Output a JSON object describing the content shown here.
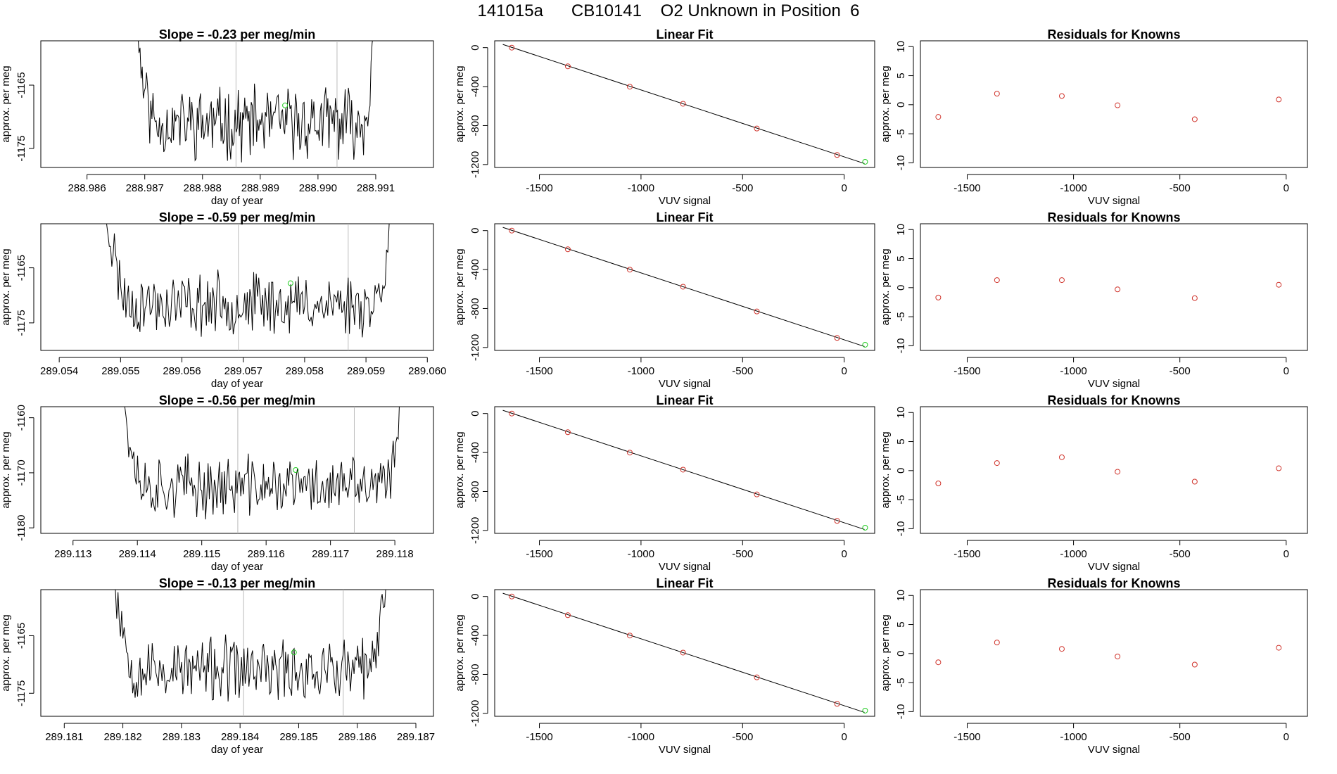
{
  "title": "141015a      CB10141    O2 Unknown in Position  6",
  "colors": {
    "line": "#000000",
    "known_point": "#d0342c",
    "unknown_point": "#22cc22",
    "vline": "#bbbbbb"
  },
  "rows": [
    {
      "timeseries": {
        "title": "Slope =  -0.23  per meg/min",
        "xlabel": "day of year",
        "ylabel": "approx. per meg",
        "xlim": [
          288.9852,
          288.992
        ],
        "ylim": [
          -1178,
          -1158
        ],
        "xticks": [
          288.986,
          288.987,
          288.988,
          288.989,
          288.99,
          288.991
        ],
        "xtick_labels": [
          "288.986",
          "288.987",
          "288.988",
          "288.989",
          "288.990",
          "288.991"
        ],
        "yticks": [
          -1175,
          -1165
        ],
        "ytick_labels": [
          "-1175",
          "-1165"
        ],
        "start": 288.98675,
        "end": 288.99105,
        "vlines": [
          288.98858,
          288.99033
        ],
        "unknown_point": [
          288.98943,
          -1168.2
        ],
        "seed": 11
      },
      "fit": {
        "title": "Linear Fit",
        "xlabel": "VUV signal",
        "ylabel": "approx. per meg",
        "xlim": [
          -1720,
          150
        ],
        "ylim": [
          -1230,
          70
        ],
        "xticks": [
          -1500,
          -1000,
          -500,
          0
        ],
        "xtick_labels": [
          "-1500",
          "-1000",
          "-500",
          "0"
        ],
        "yticks": [
          -1200,
          -800,
          -400,
          0
        ],
        "ytick_labels": [
          "-1200",
          "-800",
          "-400",
          "0"
        ],
        "line": [
          [
            -1680,
            33
          ],
          [
            100,
            -1190
          ]
        ],
        "knowns": [
          [
            -1636,
            0
          ],
          [
            -1360,
            -192
          ],
          [
            -1055,
            -401
          ],
          [
            -793,
            -576
          ],
          [
            -430,
            -830
          ],
          [
            -35,
            -1102
          ]
        ],
        "unknown": [
          103,
          -1172
        ]
      },
      "residuals": {
        "title": "Residuals for Knowns",
        "xlabel": "VUV signal",
        "ylabel": "approx. per meg",
        "xlim": [
          -1720,
          100
        ],
        "ylim": [
          -10.8,
          11
        ],
        "xticks": [
          -1500,
          -1000,
          -500,
          0
        ],
        "xtick_labels": [
          "-1500",
          "-1000",
          "-500",
          "0"
        ],
        "yticks": [
          -10,
          -5,
          0,
          5,
          10
        ],
        "ytick_labels": [
          "-10",
          "-5",
          "0",
          "5",
          "10"
        ],
        "points": [
          [
            -1636,
            -2.1
          ],
          [
            -1360,
            1.9
          ],
          [
            -1055,
            1.5
          ],
          [
            -793,
            -0.1
          ],
          [
            -430,
            -2.5
          ],
          [
            -35,
            0.9
          ]
        ]
      }
    },
    {
      "timeseries": {
        "title": "Slope =  -0.59  per meg/min",
        "xlabel": "day of year",
        "ylabel": "approx. per meg",
        "xlim": [
          289.0537,
          289.0601
        ],
        "ylim": [
          -1180,
          -1157
        ],
        "xticks": [
          289.054,
          289.055,
          289.056,
          289.057,
          289.058,
          289.059,
          289.06
        ],
        "xtick_labels": [
          "289.054",
          "289.055",
          "289.056",
          "289.057",
          "289.058",
          "289.059",
          "289.060"
        ],
        "yticks": [
          -1175,
          -1165
        ],
        "ytick_labels": [
          "-1175",
          "-1165"
        ],
        "start": 289.05467,
        "end": 289.05946,
        "vlines": [
          289.05692,
          289.05871
        ],
        "unknown_point": [
          289.05777,
          -1167.8
        ],
        "seed": 23
      },
      "fit": {
        "title": "Linear Fit",
        "xlabel": "VUV signal",
        "ylabel": "approx. per meg",
        "xlim": [
          -1720,
          150
        ],
        "ylim": [
          -1230,
          70
        ],
        "xticks": [
          -1500,
          -1000,
          -500,
          0
        ],
        "xtick_labels": [
          "-1500",
          "-1000",
          "-500",
          "0"
        ],
        "yticks": [
          -1200,
          -800,
          -400,
          0
        ],
        "ytick_labels": [
          "-1200",
          "-800",
          "-400",
          "0"
        ],
        "line": [
          [
            -1680,
            33
          ],
          [
            100,
            -1190
          ]
        ],
        "knowns": [
          [
            -1636,
            0
          ],
          [
            -1360,
            -192
          ],
          [
            -1055,
            -401
          ],
          [
            -793,
            -576
          ],
          [
            -430,
            -830
          ],
          [
            -35,
            -1102
          ]
        ],
        "unknown": [
          103,
          -1172
        ]
      },
      "residuals": {
        "title": "Residuals for Knowns",
        "xlabel": "VUV signal",
        "ylabel": "approx. per meg",
        "xlim": [
          -1720,
          100
        ],
        "ylim": [
          -10.8,
          11
        ],
        "xticks": [
          -1500,
          -1000,
          -500,
          0
        ],
        "xtick_labels": [
          "-1500",
          "-1000",
          "-500",
          "0"
        ],
        "yticks": [
          -10,
          -5,
          0,
          5,
          10
        ],
        "ytick_labels": [
          "-10",
          "-5",
          "0",
          "5",
          "10"
        ],
        "points": [
          [
            -1636,
            -1.7
          ],
          [
            -1360,
            1.3
          ],
          [
            -1055,
            1.3
          ],
          [
            -793,
            -0.3
          ],
          [
            -430,
            -1.8
          ],
          [
            -35,
            0.5
          ]
        ]
      }
    },
    {
      "timeseries": {
        "title": "Slope =  -0.56  per meg/min",
        "xlabel": "day of year",
        "ylabel": "approx. per meg",
        "xlim": [
          289.1125,
          289.1186
        ],
        "ylim": [
          -1181,
          -1158
        ],
        "xticks": [
          289.113,
          289.114,
          289.115,
          289.116,
          289.117,
          289.118
        ],
        "xtick_labels": [
          "289.113",
          "289.114",
          "289.115",
          "289.116",
          "289.117",
          "289.118"
        ],
        "yticks": [
          -1180,
          -1170,
          -1160
        ],
        "ytick_labels": [
          "-1180",
          "-1170",
          "-1160"
        ],
        "start": 289.11367,
        "end": 289.11817,
        "vlines": [
          289.11556,
          289.11737
        ],
        "unknown_point": [
          289.11646,
          -1169.5
        ],
        "seed": 37
      },
      "fit": {
        "title": "Linear Fit",
        "xlabel": "VUV signal",
        "ylabel": "approx. per meg",
        "xlim": [
          -1720,
          150
        ],
        "ylim": [
          -1230,
          70
        ],
        "xticks": [
          -1500,
          -1000,
          -500,
          0
        ],
        "xtick_labels": [
          "-1500",
          "-1000",
          "-500",
          "0"
        ],
        "yticks": [
          -1200,
          -800,
          -400,
          0
        ],
        "ytick_labels": [
          "-1200",
          "-800",
          "-400",
          "0"
        ],
        "line": [
          [
            -1680,
            33
          ],
          [
            100,
            -1190
          ]
        ],
        "knowns": [
          [
            -1636,
            0
          ],
          [
            -1360,
            -192
          ],
          [
            -1055,
            -401
          ],
          [
            -793,
            -576
          ],
          [
            -430,
            -830
          ],
          [
            -35,
            -1102
          ]
        ],
        "unknown": [
          103,
          -1172
        ]
      },
      "residuals": {
        "title": "Residuals for Knowns",
        "xlabel": "VUV signal",
        "ylabel": "approx. per meg",
        "xlim": [
          -1720,
          100
        ],
        "ylim": [
          -10.8,
          11
        ],
        "xticks": [
          -1500,
          -1000,
          -500,
          0
        ],
        "xtick_labels": [
          "-1500",
          "-1000",
          "-500",
          "0"
        ],
        "yticks": [
          -10,
          -5,
          0,
          5,
          10
        ],
        "ytick_labels": [
          "-10",
          "-5",
          "0",
          "5",
          "10"
        ],
        "points": [
          [
            -1636,
            -2.2
          ],
          [
            -1360,
            1.3
          ],
          [
            -1055,
            2.3
          ],
          [
            -793,
            -0.2
          ],
          [
            -430,
            -1.9
          ],
          [
            -35,
            0.4
          ]
        ]
      }
    },
    {
      "timeseries": {
        "title": "Slope =  -0.13  per meg/min",
        "xlabel": "day of year",
        "ylabel": "approx. per meg",
        "xlim": [
          289.1806,
          289.1873
        ],
        "ylim": [
          -1179,
          -1157
        ],
        "xticks": [
          289.181,
          289.182,
          289.183,
          289.184,
          289.185,
          289.186,
          289.187
        ],
        "xtick_labels": [
          "289.181",
          "289.182",
          "289.183",
          "289.184",
          "289.185",
          "289.186",
          "289.187"
        ],
        "yticks": [
          -1175,
          -1165
        ],
        "ytick_labels": [
          "-1175",
          "-1165"
        ],
        "start": 289.18175,
        "end": 289.18655,
        "vlines": [
          289.18406,
          289.18576
        ],
        "unknown_point": [
          289.18492,
          -1167.9
        ],
        "seed": 53
      },
      "fit": {
        "title": "Linear Fit",
        "xlabel": "VUV signal",
        "ylabel": "approx. per meg",
        "xlim": [
          -1720,
          150
        ],
        "ylim": [
          -1230,
          70
        ],
        "xticks": [
          -1500,
          -1000,
          -500,
          0
        ],
        "xtick_labels": [
          "-1500",
          "-1000",
          "-500",
          "0"
        ],
        "yticks": [
          -1200,
          -800,
          -400,
          0
        ],
        "ytick_labels": [
          "-1200",
          "-800",
          "-400",
          "0"
        ],
        "line": [
          [
            -1680,
            33
          ],
          [
            100,
            -1190
          ]
        ],
        "knowns": [
          [
            -1636,
            0
          ],
          [
            -1360,
            -192
          ],
          [
            -1055,
            -401
          ],
          [
            -793,
            -576
          ],
          [
            -430,
            -830
          ],
          [
            -35,
            -1102
          ]
        ],
        "unknown": [
          103,
          -1172
        ]
      },
      "residuals": {
        "title": "Residuals for Knowns",
        "xlabel": "VUV signal",
        "ylabel": "approx. per meg",
        "xlim": [
          -1720,
          100
        ],
        "ylim": [
          -10.8,
          11
        ],
        "xticks": [
          -1500,
          -1000,
          -500,
          0
        ],
        "xtick_labels": [
          "-1500",
          "-1000",
          "-500",
          "0"
        ],
        "yticks": [
          -10,
          -5,
          0,
          5,
          10
        ],
        "ytick_labels": [
          "-10",
          "-5",
          "0",
          "5",
          "10"
        ],
        "points": [
          [
            -1636,
            -1.5
          ],
          [
            -1360,
            1.9
          ],
          [
            -1055,
            0.8
          ],
          [
            -793,
            -0.5
          ],
          [
            -430,
            -1.9
          ],
          [
            -35,
            1.0
          ]
        ]
      }
    }
  ],
  "chart_data": [
    {
      "type": "line",
      "title": "Slope =  -0.23  per meg/min",
      "xlabel": "day of year",
      "ylabel": "approx. per meg",
      "xlim": [
        288.9852,
        288.992
      ],
      "ylim": [
        -1178,
        -1158
      ],
      "series": [
        {
          "name": "approx. per meg (noisy trace, ~-1170 baseline, rises above -1158 at both ends)",
          "x_start": 288.98675,
          "x_end": 288.99105
        }
      ],
      "vertical_lines": [
        288.98858,
        288.99033
      ],
      "unknown_point": [
        288.98943,
        -1168.2
      ]
    },
    {
      "type": "scatter",
      "title": "Linear Fit",
      "xlabel": "VUV signal",
      "ylabel": "approx. per meg",
      "known_x": [
        -1636,
        -1360,
        -1055,
        -793,
        -430,
        -35
      ],
      "known_y": [
        0,
        -192,
        -401,
        -576,
        -830,
        -1102
      ],
      "unknown": [
        103,
        -1172
      ],
      "fit_line": [
        [
          -1680,
          33
        ],
        [
          100,
          -1190
        ]
      ]
    },
    {
      "type": "scatter",
      "title": "Residuals for Knowns",
      "xlabel": "VUV signal",
      "ylabel": "approx. per meg",
      "x": [
        -1636,
        -1360,
        -1055,
        -793,
        -430,
        -35
      ],
      "y": [
        -2.1,
        1.9,
        1.5,
        -0.1,
        -2.5,
        0.9
      ]
    },
    {
      "type": "line",
      "title": "Slope =  -0.59  per meg/min",
      "xlabel": "day of year",
      "ylabel": "approx. per meg",
      "xlim": [
        289.0537,
        289.0601
      ],
      "ylim": [
        -1180,
        -1157
      ],
      "vertical_lines": [
        289.05692,
        289.05871
      ],
      "unknown_point": [
        289.05777,
        -1167.8
      ]
    },
    {
      "type": "scatter",
      "title": "Linear Fit",
      "xlabel": "VUV signal",
      "ylabel": "approx. per meg",
      "known_x": [
        -1636,
        -1360,
        -1055,
        -793,
        -430,
        -35
      ],
      "known_y": [
        0,
        -192,
        -401,
        -576,
        -830,
        -1102
      ],
      "unknown": [
        103,
        -1172
      ]
    },
    {
      "type": "scatter",
      "title": "Residuals for Knowns",
      "xlabel": "VUV signal",
      "ylabel": "approx. per meg",
      "x": [
        -1636,
        -1360,
        -1055,
        -793,
        -430,
        -35
      ],
      "y": [
        -1.7,
        1.3,
        1.3,
        -0.3,
        -1.8,
        0.5
      ]
    },
    {
      "type": "line",
      "title": "Slope =  -0.56  per meg/min",
      "xlabel": "day of year",
      "ylabel": "approx. per meg",
      "xlim": [
        289.1125,
        289.1186
      ],
      "ylim": [
        -1181,
        -1158
      ],
      "vertical_lines": [
        289.11556,
        289.11737
      ],
      "unknown_point": [
        289.11646,
        -1169.5
      ]
    },
    {
      "type": "scatter",
      "title": "Linear Fit",
      "xlabel": "VUV signal",
      "ylabel": "approx. per meg",
      "known_x": [
        -1636,
        -1360,
        -1055,
        -793,
        -430,
        -35
      ],
      "known_y": [
        0,
        -192,
        -401,
        -576,
        -830,
        -1102
      ],
      "unknown": [
        103,
        -1172
      ]
    },
    {
      "type": "scatter",
      "title": "Residuals for Knowns",
      "xlabel": "VUV signal",
      "ylabel": "approx. per meg",
      "x": [
        -1636,
        -1360,
        -1055,
        -793,
        -430,
        -35
      ],
      "y": [
        -2.2,
        1.3,
        2.3,
        -0.2,
        -1.9,
        0.4
      ]
    },
    {
      "type": "line",
      "title": "Slope =  -0.13  per meg/min",
      "xlabel": "day of year",
      "ylabel": "approx. per meg",
      "xlim": [
        289.1806,
        289.1873
      ],
      "ylim": [
        -1179,
        -1157
      ],
      "vertical_lines": [
        289.18406,
        289.18576
      ],
      "unknown_point": [
        289.18492,
        -1167.9
      ]
    },
    {
      "type": "scatter",
      "title": "Linear Fit",
      "xlabel": "VUV signal",
      "ylabel": "approx. per meg",
      "known_x": [
        -1636,
        -1360,
        -1055,
        -793,
        -430,
        -35
      ],
      "known_y": [
        0,
        -192,
        -401,
        -576,
        -830,
        -1102
      ],
      "unknown": [
        103,
        -1172
      ]
    },
    {
      "type": "scatter",
      "title": "Residuals for Knowns",
      "xlabel": "VUV signal",
      "ylabel": "approx. per meg",
      "x": [
        -1636,
        -1360,
        -1055,
        -793,
        -430,
        -35
      ],
      "y": [
        -1.5,
        1.9,
        0.8,
        -0.5,
        -1.9,
        1.0
      ]
    }
  ]
}
